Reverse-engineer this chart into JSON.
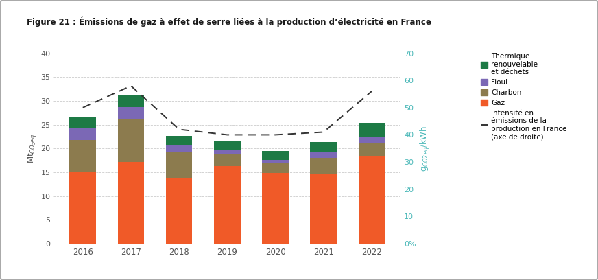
{
  "title": "Figure 21 : Émissions de gaz à effet de serre liées à la production d’électricité en France",
  "years": [
    2016,
    2017,
    2018,
    2019,
    2020,
    2021,
    2022
  ],
  "gaz": [
    15.2,
    17.2,
    13.8,
    16.3,
    14.8,
    14.5,
    18.5
  ],
  "charbon": [
    6.5,
    9.0,
    5.5,
    2.5,
    2.0,
    3.5,
    2.5
  ],
  "fioul": [
    2.5,
    2.5,
    1.5,
    1.0,
    0.8,
    1.2,
    1.5
  ],
  "thermique": [
    2.4,
    2.5,
    1.9,
    1.7,
    1.8,
    2.2,
    2.8
  ],
  "intensite": [
    50,
    58,
    42,
    40,
    40,
    41,
    56
  ],
  "color_gaz": "#f05a28",
  "color_charbon": "#8c7b4e",
  "color_fioul": "#7b68b5",
  "color_thermique": "#1d7a45",
  "color_line": "#333333",
  "ylabel_left": "Mt$_{CO_2eq}$",
  "ylabel_right": "g$_{CO2eq}$/kWh",
  "ylim_left": [
    0,
    40
  ],
  "ylim_right": [
    0,
    70
  ],
  "yticks_left": [
    0,
    5,
    10,
    15,
    20,
    25,
    30,
    35,
    40
  ],
  "yticks_right_vals": [
    0,
    10,
    20,
    30,
    40,
    50,
    60,
    70
  ],
  "yticks_right_labels": [
    "0%",
    "10",
    "20",
    "30",
    "40",
    "50",
    "60",
    "70"
  ],
  "bg_color": "#ffffff",
  "border_color": "#aaaaaa",
  "legend_thermique": "Thermique\nrenouvelable\net déchets",
  "legend_fioul": "Fioul",
  "legend_charbon": "Charbon",
  "legend_gaz": "Gaz",
  "legend_intensite": "Intensité en\némissions de la\nproduction en France\n(axe de droite)"
}
